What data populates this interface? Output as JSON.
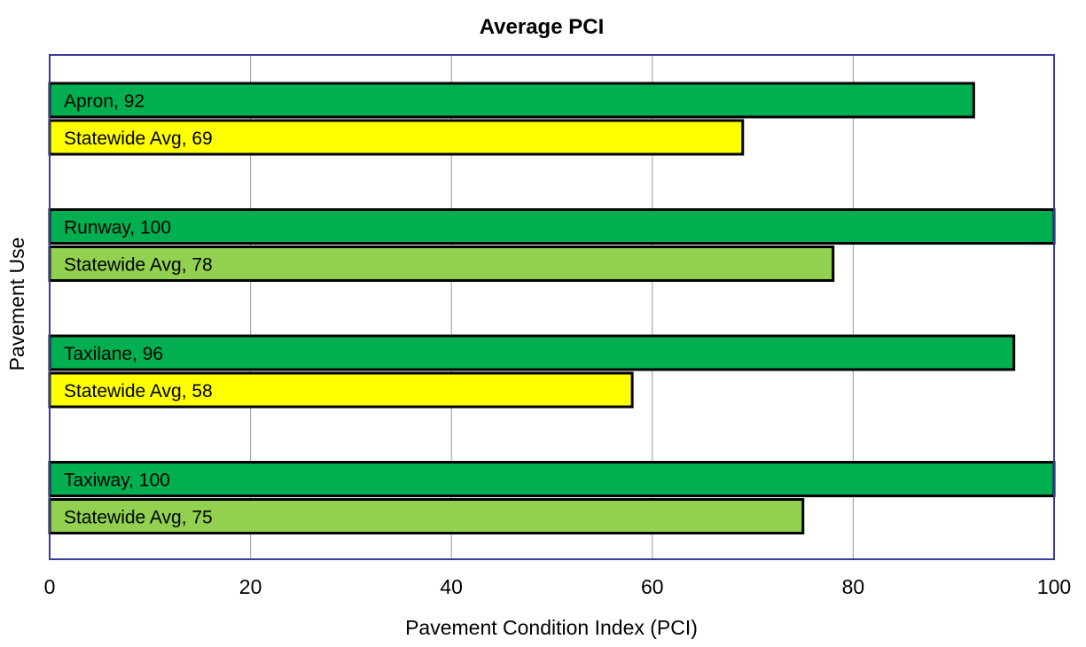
{
  "chart_data": {
    "type": "bar",
    "orientation": "horizontal",
    "title": "Average PCI",
    "xlabel": "Pavement Condition Index (PCI)",
    "ylabel": "Pavement Use",
    "xlim": [
      0,
      100
    ],
    "x_ticks": [
      0,
      20,
      40,
      60,
      80,
      100
    ],
    "grid": true,
    "legend": "none",
    "groups": [
      {
        "bars": [
          {
            "label": "Apron, 92",
            "value": 92,
            "color": "#00b050"
          },
          {
            "label": "Statewide Avg, 69",
            "value": 69,
            "color": "#ffff00"
          }
        ]
      },
      {
        "bars": [
          {
            "label": "Runway, 100",
            "value": 100,
            "color": "#00b050"
          },
          {
            "label": "Statewide Avg, 78",
            "value": 78,
            "color": "#92d050"
          }
        ]
      },
      {
        "bars": [
          {
            "label": "Taxilane, 96",
            "value": 96,
            "color": "#00b050"
          },
          {
            "label": "Statewide Avg, 58",
            "value": 58,
            "color": "#ffff00"
          }
        ]
      },
      {
        "bars": [
          {
            "label": "Taxiway, 100",
            "value": 100,
            "color": "#00b050"
          },
          {
            "label": "Statewide Avg, 75",
            "value": 75,
            "color": "#92d050"
          }
        ]
      }
    ],
    "colors": {
      "plot_border": "#3a3a9a",
      "gridline": "#999999",
      "bar_outline": "#000000"
    }
  }
}
